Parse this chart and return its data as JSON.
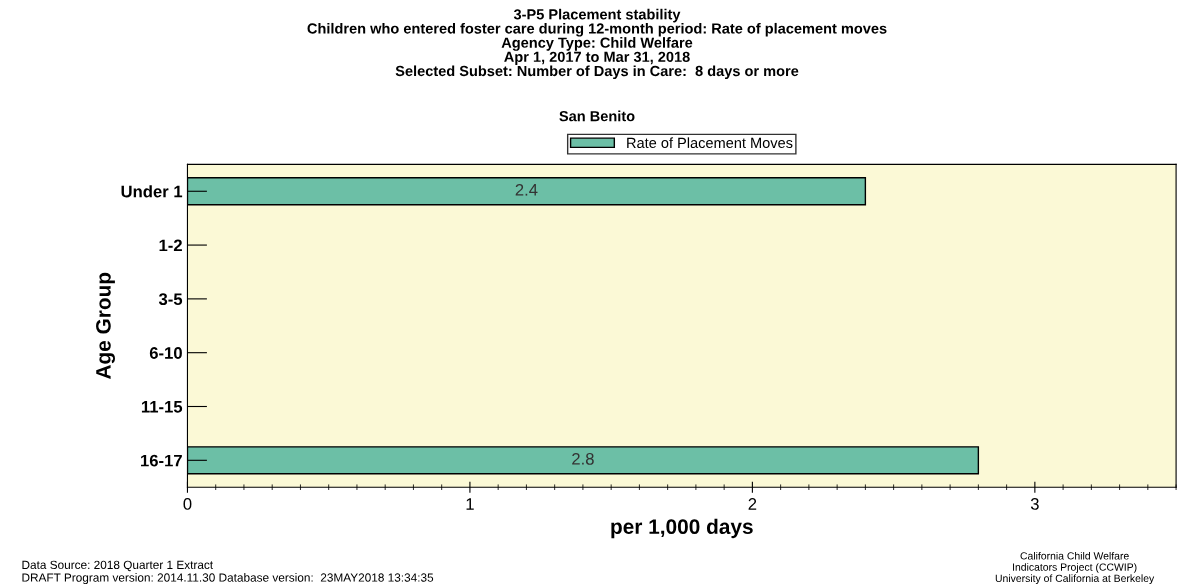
{
  "chart_data": {
    "type": "bar",
    "orientation": "horizontal",
    "title": "3-P5 Placement stability\nChildren who entered foster care during 12-month period: Rate of placement moves\nAgency Type: Child Welfare\nApr 1, 2017 to Mar 31, 2018\nSelected Subset: Number of Days in Care:  8 days or more",
    "subtitle": "San Benito",
    "xlabel": "per 1,000 days",
    "ylabel": "Age Group",
    "categories": [
      "Under 1",
      "1-2",
      "3-5",
      "6-10",
      "11-15",
      "16-17"
    ],
    "series": [
      {
        "name": "Rate of Placement Moves",
        "color": "#6cbfa6",
        "values": [
          2.4,
          null,
          null,
          null,
          null,
          2.8
        ]
      }
    ],
    "xlim": [
      0,
      3.5
    ],
    "xticks": [
      0,
      1,
      2,
      3
    ],
    "data_labels": true,
    "legend": "top",
    "grid": false,
    "annotations": [
      "Data Source: 2018 Quarter 1 Extract\nDRAFT Program version: 2014.11.30 Database version:  23MAY2018 13:34:35",
      "California Child Welfare\nIndicators Project (CCWIP)\nUniversity of California at Berkeley"
    ]
  }
}
